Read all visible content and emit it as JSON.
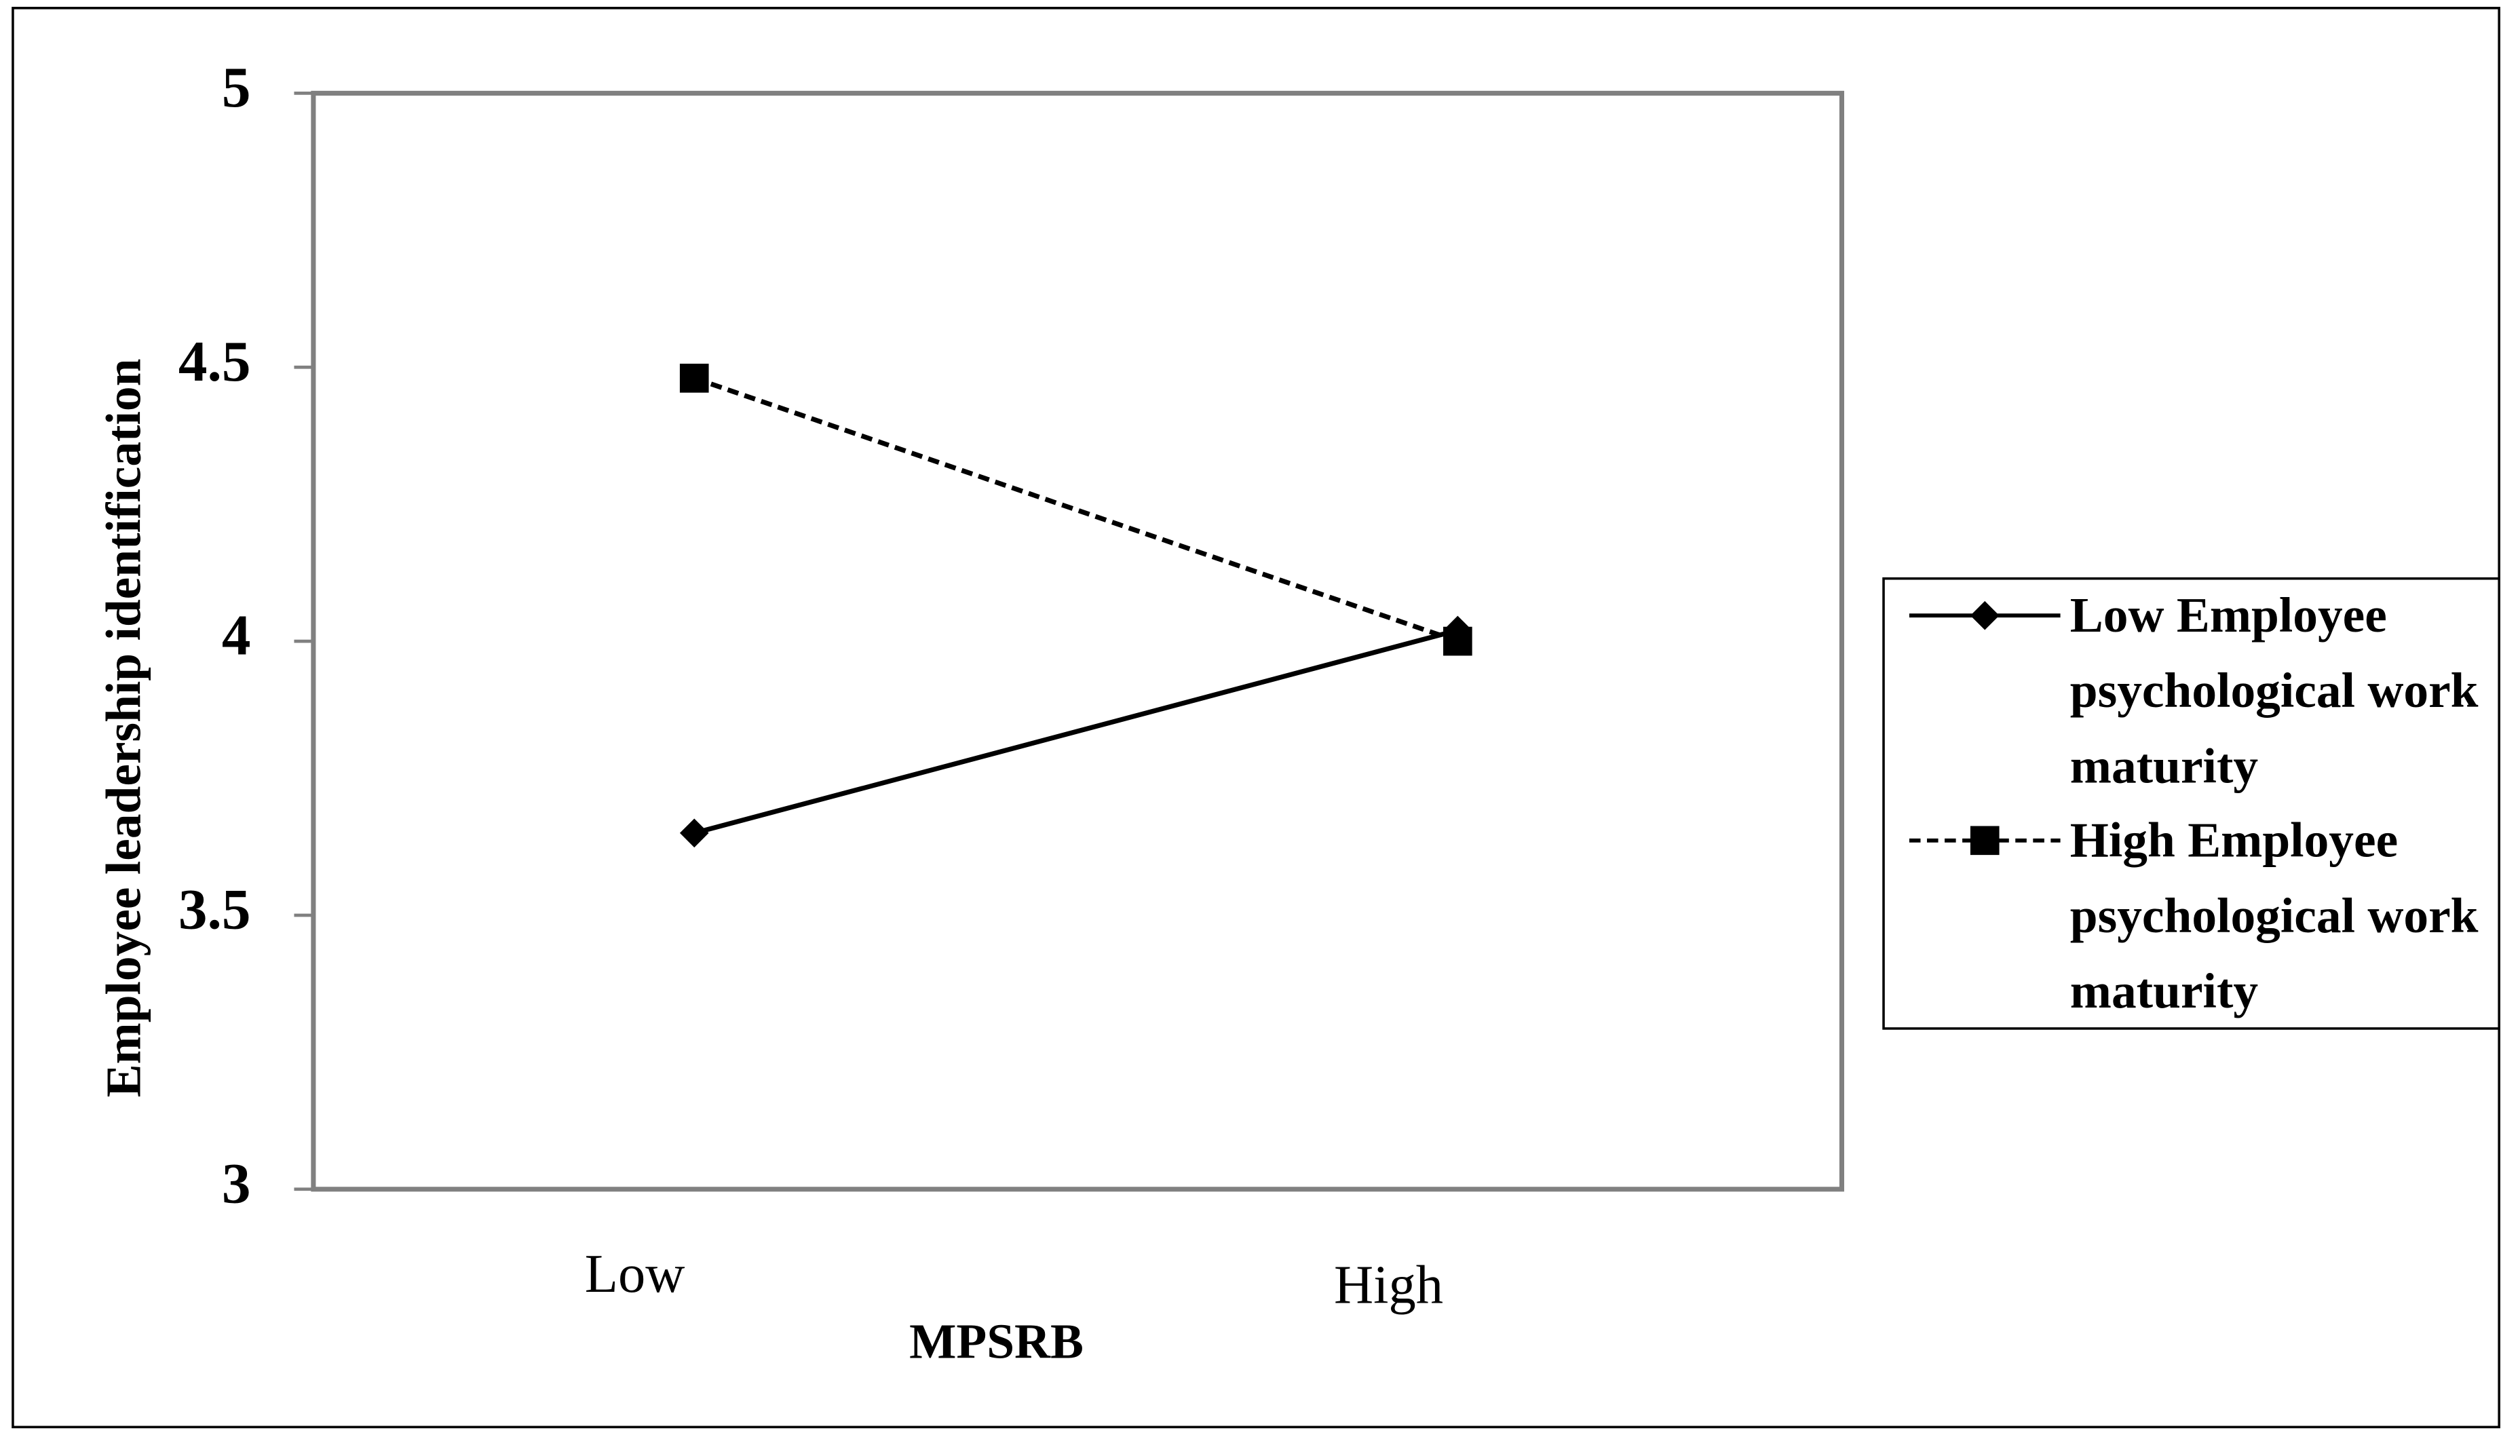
{
  "chart_data": {
    "type": "line",
    "x_label": "MPSRB",
    "y_label": "Employee leadership identification",
    "categories": [
      "Low",
      "High"
    ],
    "series": [
      {
        "name": "Low Employee psychological work maturity",
        "color": "#000000",
        "linestyle": "solid",
        "marker": "diamond",
        "values": [
          3.65,
          4.02
        ]
      },
      {
        "name": "High Employee psychological work maturity",
        "color": "#000000",
        "linestyle": "dashed",
        "marker": "square",
        "values": [
          4.48,
          4.0
        ]
      }
    ],
    "ylim": [
      3,
      5
    ],
    "yticks": [
      3,
      3.5,
      4,
      4.5,
      5
    ],
    "grid": false,
    "legend": "right"
  }
}
